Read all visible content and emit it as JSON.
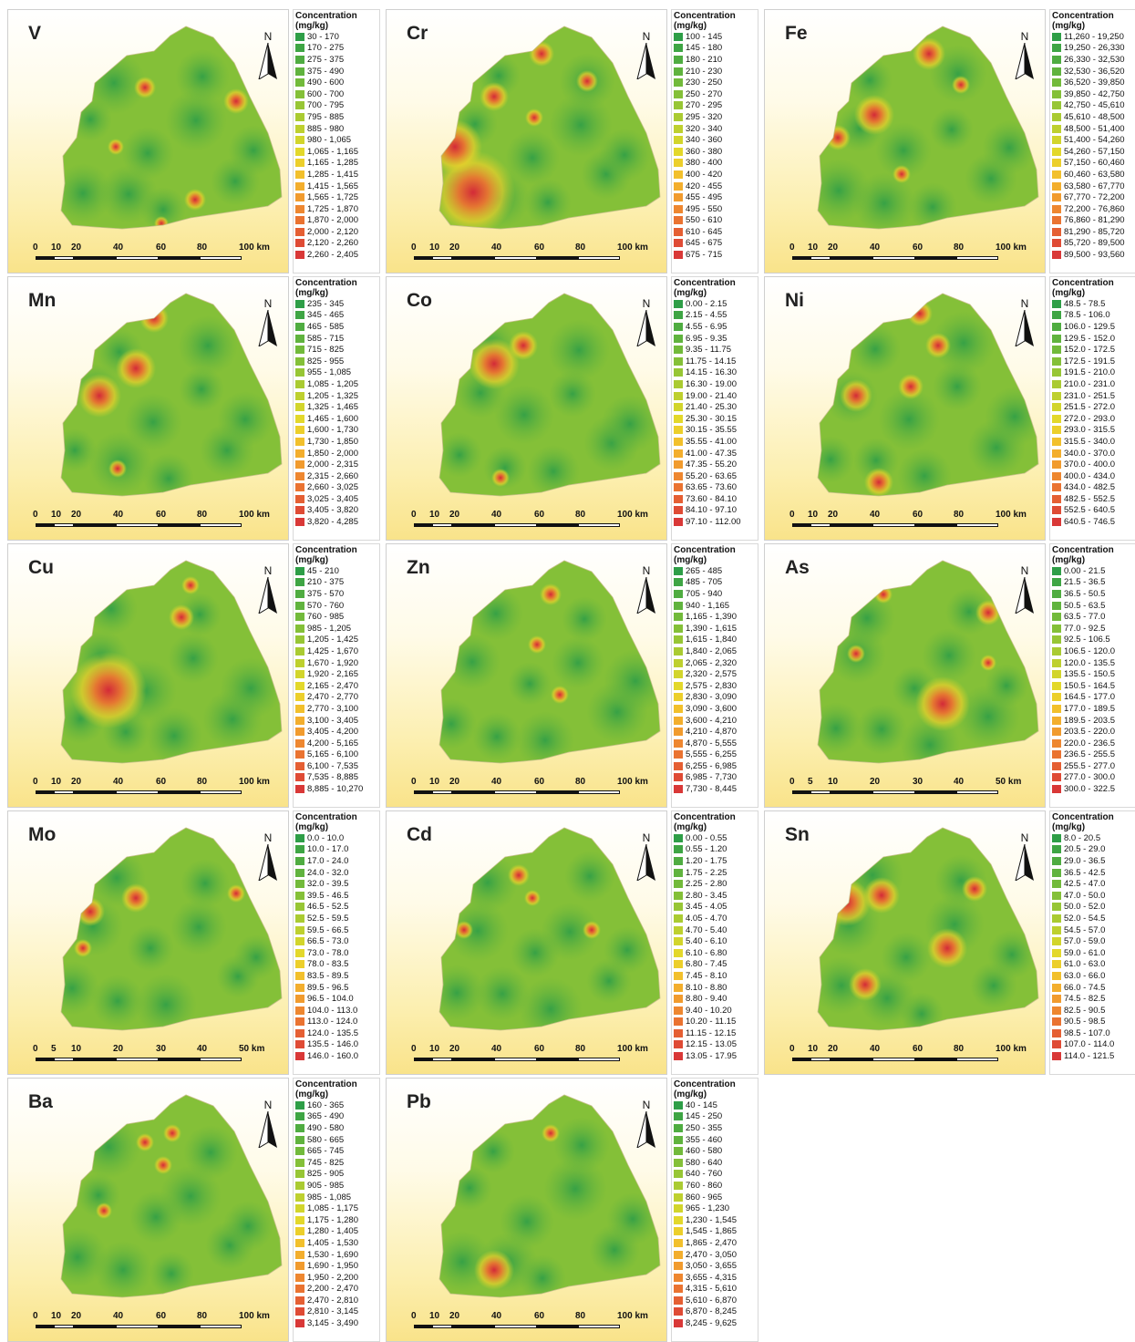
{
  "legend_title": "Concentration",
  "legend_unit": "(mg/kg)",
  "north_label": "N",
  "color_ramp": [
    "#2e9e47",
    "#3ea544",
    "#4fac41",
    "#60b33e",
    "#72ba3b",
    "#84c038",
    "#97c635",
    "#aacb32",
    "#bed02f",
    "#d2d52c",
    "#e3d82b",
    "#eccf2b",
    "#f2c02c",
    "#f3ae2d",
    "#f19b2e",
    "#ee8730",
    "#ea7331",
    "#e55f33",
    "#df4b35",
    "#d93837",
    "#d32a38"
  ],
  "panels": [
    {
      "element": "V",
      "scale_ticks": [
        "0",
        "10",
        "20",
        "40",
        "60",
        "80",
        "100 km"
      ],
      "classes": [
        "30 - 170",
        "170 - 275",
        "275 - 375",
        "375 - 490",
        "490 - 600",
        "600 - 700",
        "700 - 795",
        "795 - 885",
        "885 - 980",
        "980 - 1,065",
        "1,065 - 1,165",
        "1,165 - 1,285",
        "1,285 - 1,415",
        "1,415 - 1,565",
        "1,565 - 1,725",
        "1,725 - 1,870",
        "1,870 - 2,000",
        "2,000 - 2,120",
        "2,120 - 2,260",
        "2,260 - 2,405"
      ]
    },
    {
      "element": "Cr",
      "scale_ticks": [
        "0",
        "10",
        "20",
        "40",
        "60",
        "80",
        "100 km"
      ],
      "classes": [
        "100 - 145",
        "145 - 180",
        "180 - 210",
        "210 - 230",
        "230 - 250",
        "250 - 270",
        "270 - 295",
        "295 - 320",
        "320 - 340",
        "340 - 360",
        "360 - 380",
        "380 - 400",
        "400 - 420",
        "420 - 455",
        "455 - 495",
        "495 - 550",
        "550 - 610",
        "610 - 645",
        "645 - 675",
        "675 - 715"
      ]
    },
    {
      "element": "Fe",
      "scale_ticks": [
        "0",
        "10",
        "20",
        "40",
        "60",
        "80",
        "100 km"
      ],
      "classes": [
        "11,260 - 19,250",
        "19,250 - 26,330",
        "26,330 - 32,530",
        "32,530 - 36,520",
        "36,520 - 39,850",
        "39,850 - 42,750",
        "42,750 - 45,610",
        "45,610 - 48,500",
        "48,500 - 51,400",
        "51,400 - 54,260",
        "54,260 - 57,150",
        "57,150 - 60,460",
        "60,460 - 63,580",
        "63,580 - 67,770",
        "67,770 - 72,200",
        "72,200 - 76,860",
        "76,860 - 81,290",
        "81,290 - 85,720",
        "85,720 - 89,500",
        "89,500 - 93,560"
      ]
    },
    {
      "element": "Mn",
      "scale_ticks": [
        "0",
        "10",
        "20",
        "40",
        "60",
        "80",
        "100 km"
      ],
      "classes": [
        "235 - 345",
        "345 - 465",
        "465 - 585",
        "585 - 715",
        "715 - 825",
        "825 - 955",
        "955 - 1,085",
        "1,085 - 1,205",
        "1,205 - 1,325",
        "1,325 - 1,465",
        "1,465 - 1,600",
        "1,600 - 1,730",
        "1,730 - 1,850",
        "1,850 - 2,000",
        "2,000 - 2,315",
        "2,315 - 2,660",
        "2,660 - 3,025",
        "3,025 - 3,405",
        "3,405 - 3,820",
        "3,820 - 4,285"
      ]
    },
    {
      "element": "Co",
      "scale_ticks": [
        "0",
        "10",
        "20",
        "40",
        "60",
        "80",
        "100 km"
      ],
      "classes": [
        "0.00 - 2.15",
        "2.15 - 4.55",
        "4.55 - 6.95",
        "6.95 - 9.35",
        "9.35 - 11.75",
        "11.75 - 14.15",
        "14.15 - 16.30",
        "16.30 - 19.00",
        "19.00 - 21.40",
        "21.40 - 25.30",
        "25.30 - 30.15",
        "30.15 - 35.55",
        "35.55 - 41.00",
        "41.00 - 47.35",
        "47.35 - 55.20",
        "55.20 - 63.65",
        "63.65 - 73.60",
        "73.60 - 84.10",
        "84.10 - 97.10",
        "97.10 - 112.00"
      ]
    },
    {
      "element": "Ni",
      "scale_ticks": [
        "0",
        "10",
        "20",
        "40",
        "60",
        "80",
        "100 km"
      ],
      "classes": [
        "48.5 - 78.5",
        "78.5 - 106.0",
        "106.0 - 129.5",
        "129.5 - 152.0",
        "152.0 - 172.5",
        "172.5 - 191.5",
        "191.5 - 210.0",
        "210.0 - 231.0",
        "231.0 - 251.5",
        "251.5 - 272.0",
        "272.0 - 293.0",
        "293.0 - 315.5",
        "315.5 - 340.0",
        "340.0 - 370.0",
        "370.0 - 400.0",
        "400.0 - 434.0",
        "434.0 - 482.5",
        "482.5 - 552.5",
        "552.5 - 640.5",
        "640.5 - 746.5"
      ]
    },
    {
      "element": "Cu",
      "scale_ticks": [
        "0",
        "10",
        "20",
        "40",
        "60",
        "80",
        "100 km"
      ],
      "classes": [
        "45 - 210",
        "210 - 375",
        "375 - 570",
        "570 - 760",
        "760 - 985",
        "985 - 1,205",
        "1,205 - 1,425",
        "1,425 - 1,670",
        "1,670 - 1,920",
        "1,920 - 2,165",
        "2,165 - 2,470",
        "2,470 - 2,770",
        "2,770 - 3,100",
        "3,100 - 3,405",
        "3,405 - 4,200",
        "4,200 - 5,165",
        "5,165 - 6,100",
        "6,100 - 7,535",
        "7,535 - 8,885",
        "8,885 - 10,270"
      ]
    },
    {
      "element": "Zn",
      "scale_ticks": [
        "0",
        "10",
        "20",
        "40",
        "60",
        "80",
        "100 km"
      ],
      "classes": [
        "265 - 485",
        "485 - 705",
        "705 - 940",
        "940 - 1,165",
        "1,165 - 1,390",
        "1,390 - 1,615",
        "1,615 - 1,840",
        "1,840 - 2,065",
        "2,065 - 2,320",
        "2,320 - 2,575",
        "2,575 - 2,830",
        "2,830 - 3,090",
        "3,090 - 3,600",
        "3,600 - 4,210",
        "4,210 - 4,870",
        "4,870 - 5,555",
        "5,555 - 6,255",
        "6,255 - 6,985",
        "6,985 - 7,730",
        "7,730 - 8,445"
      ]
    },
    {
      "element": "As",
      "scale_ticks": [
        "0",
        "5",
        "10",
        "20",
        "30",
        "40",
        "50 km"
      ],
      "classes": [
        "0.00 - 21.5",
        "21.5 - 36.5",
        "36.5 - 50.5",
        "50.5 - 63.5",
        "63.5 - 77.0",
        "77.0 - 92.5",
        "92.5 - 106.5",
        "106.5 - 120.0",
        "120.0 - 135.5",
        "135.5 - 150.5",
        "150.5 - 164.5",
        "164.5 - 177.0",
        "177.0 - 189.5",
        "189.5 - 203.5",
        "203.5 - 220.0",
        "220.0 - 236.5",
        "236.5 - 255.5",
        "255.5 - 277.0",
        "277.0 - 300.0",
        "300.0 - 322.5"
      ]
    },
    {
      "element": "Mo",
      "scale_ticks": [
        "0",
        "5",
        "10",
        "20",
        "30",
        "40",
        "50 km"
      ],
      "classes": [
        "0.0 - 10.0",
        "10.0 - 17.0",
        "17.0 - 24.0",
        "24.0 - 32.0",
        "32.0 - 39.5",
        "39.5 - 46.5",
        "46.5 - 52.5",
        "52.5 - 59.5",
        "59.5 - 66.5",
        "66.5 - 73.0",
        "73.0 - 78.0",
        "78.0 - 83.5",
        "83.5 - 89.5",
        "89.5 - 96.5",
        "96.5 - 104.0",
        "104.0 - 113.0",
        "113.0 - 124.0",
        "124.0 - 135.5",
        "135.5 - 146.0",
        "146.0 - 160.0"
      ]
    },
    {
      "element": "Cd",
      "scale_ticks": [
        "0",
        "10",
        "20",
        "40",
        "60",
        "80",
        "100 km"
      ],
      "classes": [
        "0.00 - 0.55",
        "0.55 - 1.20",
        "1.20 - 1.75",
        "1.75 - 2.25",
        "2.25 - 2.80",
        "2.80 - 3.45",
        "3.45 - 4.05",
        "4.05 - 4.70",
        "4.70 - 5.40",
        "5.40 - 6.10",
        "6.10 - 6.80",
        "6.80 - 7.45",
        "7.45 - 8.10",
        "8.10 - 8.80",
        "8.80 - 9.40",
        "9.40 - 10.20",
        "10.20 - 11.15",
        "11.15 - 12.15",
        "12.15 - 13.05",
        "13.05 - 17.95"
      ]
    },
    {
      "element": "Sn",
      "scale_ticks": [
        "0",
        "10",
        "20",
        "40",
        "60",
        "80",
        "100 km"
      ],
      "classes": [
        "8.0 - 20.5",
        "20.5 - 29.0",
        "29.0 - 36.5",
        "36.5 - 42.5",
        "42.5 - 47.0",
        "47.0 - 50.0",
        "50.0 - 52.0",
        "52.0 - 54.5",
        "54.5 - 57.0",
        "57.0 - 59.0",
        "59.0 - 61.0",
        "61.0 - 63.0",
        "63.0 - 66.0",
        "66.0 - 74.5",
        "74.5 - 82.5",
        "82.5 - 90.5",
        "90.5 - 98.5",
        "98.5 - 107.0",
        "107.0 - 114.0",
        "114.0 - 121.5"
      ]
    },
    {
      "element": "Ba",
      "scale_ticks": [
        "0",
        "10",
        "20",
        "40",
        "60",
        "80",
        "100 km"
      ],
      "classes": [
        "160 - 365",
        "365 - 490",
        "490 - 580",
        "580 - 665",
        "665 - 745",
        "745 - 825",
        "825 - 905",
        "905 - 985",
        "985 - 1,085",
        "1,085 - 1,175",
        "1,175 - 1,280",
        "1,280 - 1,405",
        "1,405 - 1,530",
        "1,530 - 1,690",
        "1,690 - 1,950",
        "1,950 - 2,200",
        "2,200 - 2,470",
        "2,470 - 2,810",
        "2,810 - 3,145",
        "3,145 - 3,490"
      ]
    },
    {
      "element": "Pb",
      "scale_ticks": [
        "0",
        "10",
        "20",
        "40",
        "60",
        "80",
        "100 km"
      ],
      "classes": [
        "40 - 145",
        "145 - 250",
        "250 - 355",
        "355 - 460",
        "460 - 580",
        "580 - 640",
        "640 - 760",
        "760 - 860",
        "860 - 965",
        "965 - 1,230",
        "1,230 - 1,545",
        "1,545 - 1,865",
        "1,865 - 2,470",
        "2,470 - 3,050",
        "3,050 - 3,655",
        "3,655 - 4,315",
        "4,315 - 5,610",
        "5,610 - 6,870",
        "6,870 - 8,245",
        "8,245 - 9,625"
      ]
    }
  ]
}
